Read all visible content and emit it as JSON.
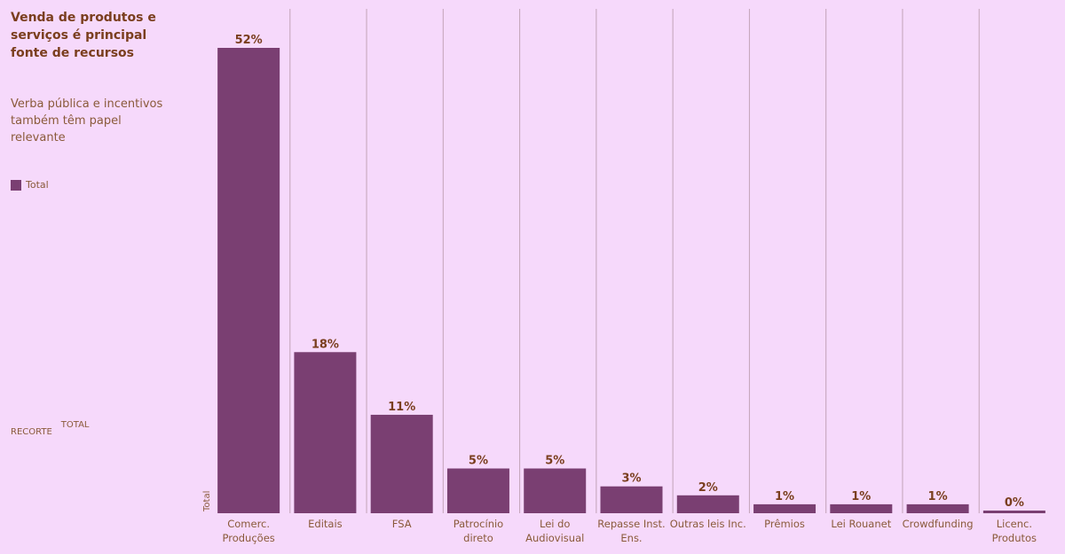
{
  "title": "Venda de produtos e serviços é principal fonte de recursos",
  "subtitle": "Verba pública e incentivos também têm papel relevante",
  "legend": {
    "label": "Total",
    "color": "#7a3f72"
  },
  "filter": {
    "label": "RECORTE",
    "value": "TOTAL"
  },
  "chart_data": {
    "type": "bar",
    "categories": [
      "Comerc. Produções",
      "Editais",
      "FSA",
      "Patrocínio direto",
      "Lei do Audiovisual",
      "Repasse Inst. Ens.",
      "Outras leis Inc.",
      "Prêmios",
      "Lei Rouanet",
      "Crowdfunding",
      "Licenc. Produtos"
    ],
    "category_lines": [
      [
        "Comerc.",
        "Produções"
      ],
      [
        "Editais"
      ],
      [
        "FSA"
      ],
      [
        "Patrocínio",
        "direto"
      ],
      [
        "Lei do",
        "Audiovisual"
      ],
      [
        "Repasse Inst.",
        "Ens."
      ],
      [
        "Outras leis Inc."
      ],
      [
        "Prêmios"
      ],
      [
        "Lei Rouanet"
      ],
      [
        "Crowdfunding"
      ],
      [
        "Licenc.",
        "Produtos"
      ]
    ],
    "values": [
      52,
      18,
      11,
      5,
      5,
      3,
      2,
      1,
      1,
      1,
      0
    ],
    "data_labels": [
      "52%",
      "18%",
      "11%",
      "5%",
      "5%",
      "3%",
      "2%",
      "1%",
      "1%",
      "1%",
      "0%"
    ],
    "series": [
      {
        "name": "Total",
        "values": [
          52,
          18,
          11,
          5,
          5,
          3,
          2,
          1,
          1,
          1,
          0
        ]
      }
    ],
    "row_header": "Total",
    "ylim": [
      0,
      52
    ],
    "grid": false,
    "bar_color": "#7a3f72",
    "separator_color": "#c2a3b8"
  }
}
